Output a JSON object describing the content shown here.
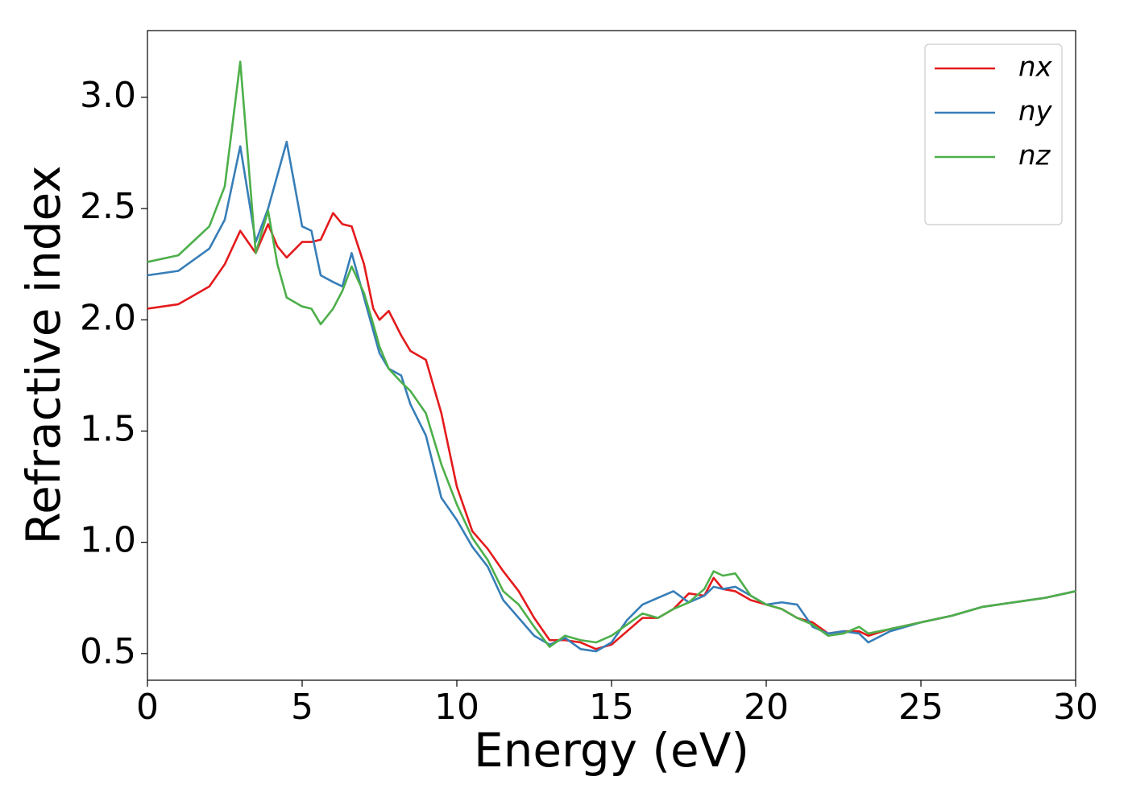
{
  "chart_data": {
    "type": "line",
    "xlabel": "Energy (eV)",
    "ylabel": "Refractive index",
    "xlim": [
      0,
      30
    ],
    "ylim": [
      0.38,
      3.3
    ],
    "xticks": [
      0,
      5,
      10,
      15,
      20,
      25,
      30
    ],
    "yticks": [
      0.5,
      {
        "value": 1,
        "label": "1.0"
      },
      1.5,
      {
        "value": 2,
        "label": "2.0"
      },
      2.5,
      {
        "value": 3,
        "label": "3.0"
      }
    ],
    "grid": false,
    "legend": "upper right",
    "x": [
      0,
      1,
      2,
      2.5,
      3,
      3.5,
      3.9,
      4.2,
      4.5,
      5,
      5.3,
      5.6,
      6,
      6.3,
      6.6,
      7,
      7.3,
      7.5,
      7.8,
      8.2,
      8.5,
      9,
      9.5,
      10,
      10.5,
      11,
      11.5,
      12,
      12.5,
      13,
      13.5,
      14,
      14.5,
      15,
      15.5,
      16,
      16.5,
      17,
      17.5,
      18,
      18.3,
      18.6,
      19,
      19.5,
      20,
      20.5,
      21,
      21.5,
      22,
      22.5,
      23,
      23.3,
      24,
      25,
      26,
      27,
      28,
      29,
      30
    ],
    "series": [
      {
        "name": "nx",
        "color": "#e41a1c",
        "values": [
          2.05,
          2.07,
          2.15,
          2.25,
          2.4,
          2.3,
          2.43,
          2.33,
          2.28,
          2.35,
          2.35,
          2.36,
          2.48,
          2.43,
          2.42,
          2.25,
          2.05,
          2.0,
          2.04,
          1.93,
          1.86,
          1.82,
          1.58,
          1.25,
          1.05,
          0.97,
          0.87,
          0.78,
          0.66,
          0.56,
          0.56,
          0.55,
          0.52,
          0.54,
          0.6,
          0.66,
          0.66,
          0.7,
          0.77,
          0.76,
          0.84,
          0.79,
          0.78,
          0.74,
          0.72,
          0.7,
          0.66,
          0.64,
          0.59,
          0.6,
          0.6,
          0.58,
          0.61,
          0.64,
          0.67,
          0.71,
          0.73,
          0.75,
          0.78
        ]
      },
      {
        "name": "ny",
        "color": "#377eb8",
        "values": [
          2.2,
          2.22,
          2.32,
          2.45,
          2.78,
          2.35,
          2.5,
          2.65,
          2.8,
          2.42,
          2.4,
          2.2,
          2.17,
          2.15,
          2.3,
          2.1,
          1.95,
          1.85,
          1.78,
          1.75,
          1.62,
          1.48,
          1.2,
          1.1,
          0.98,
          0.89,
          0.74,
          0.66,
          0.58,
          0.54,
          0.57,
          0.52,
          0.51,
          0.55,
          0.65,
          0.72,
          0.75,
          0.78,
          0.73,
          0.76,
          0.8,
          0.79,
          0.8,
          0.76,
          0.72,
          0.73,
          0.72,
          0.62,
          0.59,
          0.6,
          0.59,
          0.55,
          0.6,
          0.64,
          0.67,
          0.71,
          0.73,
          0.75,
          0.78
        ]
      },
      {
        "name": "nz",
        "color": "#4daf4a",
        "values": [
          2.26,
          2.29,
          2.42,
          2.6,
          3.16,
          2.3,
          2.49,
          2.25,
          2.1,
          2.06,
          2.05,
          1.98,
          2.05,
          2.13,
          2.24,
          2.12,
          1.98,
          1.88,
          1.78,
          1.72,
          1.68,
          1.58,
          1.35,
          1.17,
          1.02,
          0.92,
          0.78,
          0.72,
          0.62,
          0.53,
          0.58,
          0.56,
          0.55,
          0.58,
          0.63,
          0.68,
          0.66,
          0.7,
          0.73,
          0.79,
          0.87,
          0.85,
          0.86,
          0.76,
          0.72,
          0.7,
          0.66,
          0.63,
          0.58,
          0.59,
          0.62,
          0.59,
          0.61,
          0.64,
          0.67,
          0.71,
          0.73,
          0.75,
          0.78
        ]
      }
    ]
  }
}
